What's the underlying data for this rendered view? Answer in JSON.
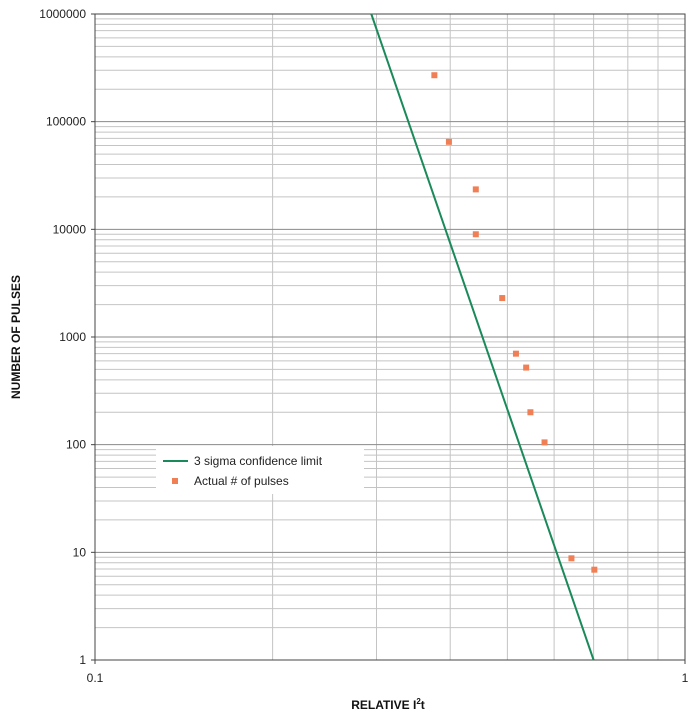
{
  "chart_data": {
    "type": "scatter",
    "title": "",
    "xlabel": "RELATIVE I",
    "xlabel_sup": "2",
    "xlabel_tail": "t",
    "ylabel": "NUMBER OF PULSES",
    "x_scale": "log",
    "y_scale": "log",
    "xlim": [
      0.1,
      1
    ],
    "ylim": [
      1,
      1000000
    ],
    "x_ticks": [
      {
        "value": 0.1,
        "label": "0.1"
      },
      {
        "value": 1,
        "label": "1"
      }
    ],
    "y_ticks": [
      {
        "value": 1,
        "label": "1"
      },
      {
        "value": 10,
        "label": "10"
      },
      {
        "value": 100,
        "label": "100"
      },
      {
        "value": 1000,
        "label": "1000"
      },
      {
        "value": 10000,
        "label": "10000"
      },
      {
        "value": 100000,
        "label": "100000"
      },
      {
        "value": 1000000,
        "label": "1000000"
      }
    ],
    "grid": true,
    "legend_position": "center-left",
    "series": [
      {
        "name": "3 sigma confidence limit",
        "kind": "line",
        "color": "#1a8a5a",
        "x": [
          0.294,
          0.7
        ],
        "y": [
          1000000,
          1
        ]
      },
      {
        "name": "Actual # of pulses",
        "kind": "scatter",
        "color": "#f07f55",
        "x": [
          0.376,
          0.398,
          0.442,
          0.442,
          0.49,
          0.517,
          0.538,
          0.547,
          0.578,
          0.642,
          0.702
        ],
        "y": [
          270000,
          65000,
          23500,
          9000,
          2300,
          700,
          520,
          200,
          105,
          8.8,
          6.9
        ]
      }
    ]
  }
}
